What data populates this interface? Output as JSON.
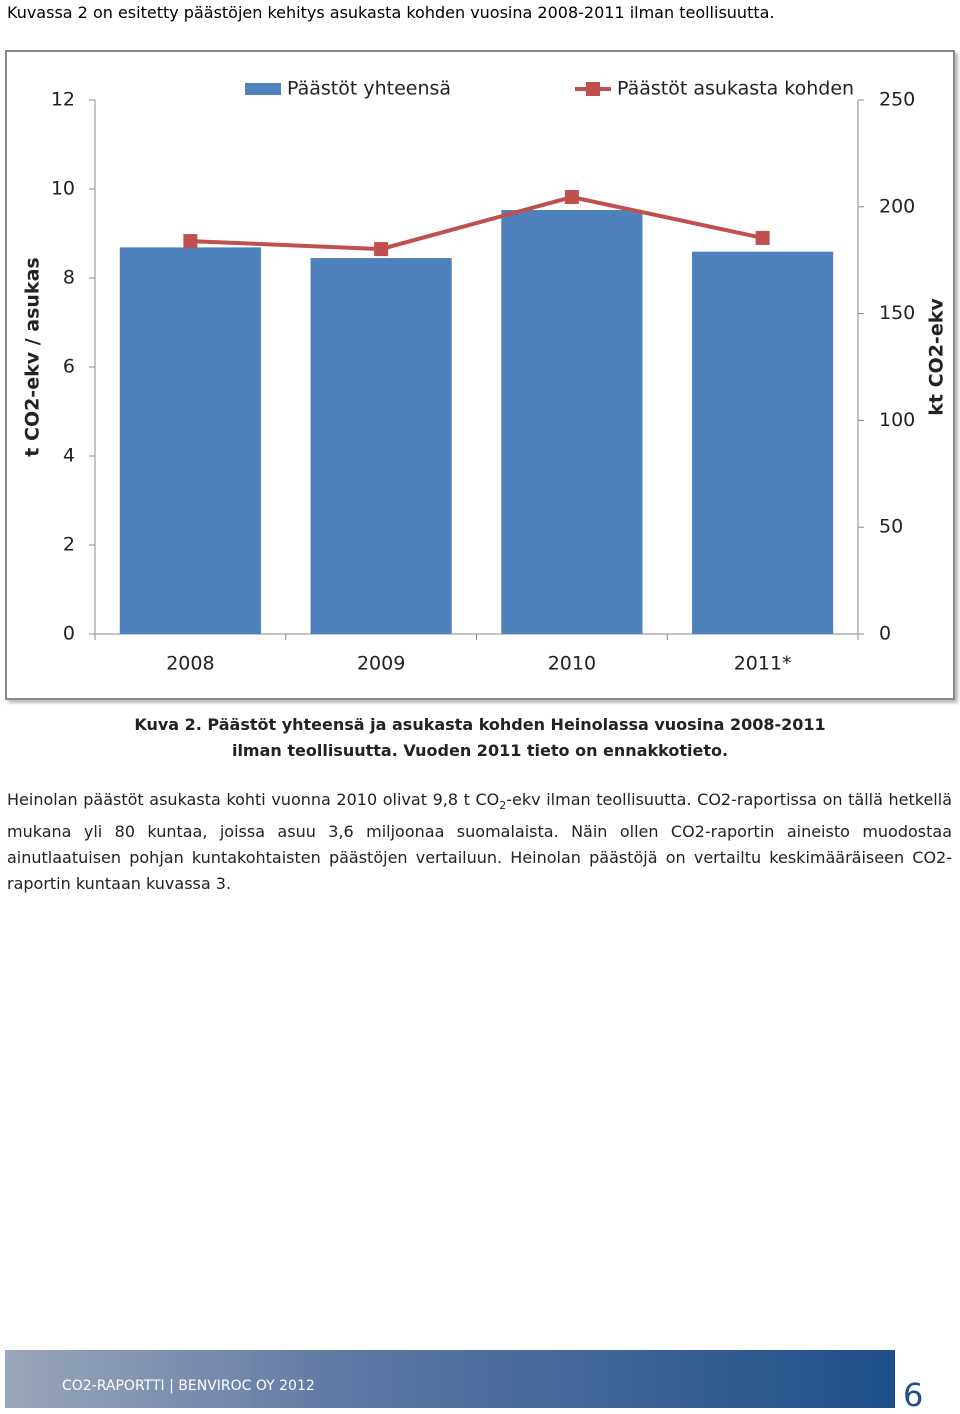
{
  "intro": "Kuvassa 2 on esitetty päästöjen kehitys asukasta kohden vuosina 2008-2011 ilman teollisuutta.",
  "chart_data": {
    "type": "bar-line",
    "categories": [
      "2008",
      "2009",
      "2010",
      "2011*"
    ],
    "ylabel": "t CO2-ekv / asukas",
    "y2label": "kt CO2-ekv",
    "ylim": [
      0,
      12
    ],
    "yticks": [
      0,
      2,
      4,
      6,
      8,
      10,
      12
    ],
    "y2lim": [
      0,
      250
    ],
    "y2ticks": [
      0,
      50,
      100,
      150,
      200,
      250
    ],
    "legend": "top",
    "series": [
      {
        "name": "Päästöt yhteensä",
        "type": "bar",
        "axis": "y2",
        "color": "#4f81bd",
        "values": [
          181,
          176,
          198.5,
          179
        ]
      },
      {
        "name": "Päästöt asukasta kohden",
        "type": "line",
        "axis": "y",
        "color": "#c0504d",
        "values": [
          8.83,
          8.65,
          9.82,
          8.9
        ]
      }
    ]
  },
  "caption": "Kuva 2. Päästöt yhteensä ja asukasta kohden Heinolassa vuosina 2008-2011 ilman teollisuutta. Vuoden 2011 tieto on ennakkotieto.",
  "paragraph": [
    "Heinolan päästöt asukasta kohti vuonna 2010 olivat 9,8 t CO",
    "2",
    "-ekv ilman teollisuutta. CO2-raportissa on tällä hetkellä mukana yli 80 kuntaa, joissa asuu 3,6 miljoonaa suomalaista. Näin ollen CO2-raportin aineisto muodostaa ainutlaatuisen pohjan kuntakohtaisten päästöjen vertailuun. Heinolan päästöjä on vertailtu keskimääräiseen CO2-raportin kuntaan kuvassa 3."
  ],
  "footer": {
    "text": "CO2-RAPORTTI | BENVIROC OY 2012",
    "page": "6"
  }
}
